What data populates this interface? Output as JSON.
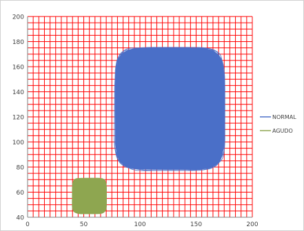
{
  "chart_data": {
    "type": "area",
    "x_range": [
      0,
      200
    ],
    "y_range": [
      40,
      200
    ],
    "x_ticks": [
      0,
      50,
      100,
      150,
      200
    ],
    "y_ticks": [
      40,
      60,
      80,
      100,
      120,
      140,
      160,
      180,
      200
    ],
    "grid": true,
    "grid_step": 5,
    "grid_color": "#ff0000",
    "legend_position": "right",
    "series": [
      {
        "name": "NORMAL",
        "color": "#4a6fc8",
        "bounds": {
          "x": [
            78,
            175
          ],
          "y": [
            78,
            175
          ]
        }
      },
      {
        "name": "AGUDO",
        "color": "#8ea650",
        "bounds": {
          "x": [
            40,
            70
          ],
          "y": [
            43,
            71
          ]
        }
      }
    ]
  }
}
